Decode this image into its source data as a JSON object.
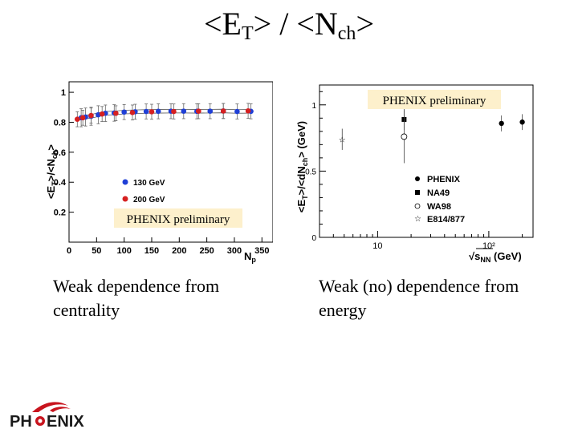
{
  "slide": {
    "title_main_1": "<E",
    "title_sub_1": "T",
    "title_main_2": "> / <N",
    "title_sub_2": "ch",
    "title_main_3": ">",
    "caption_left": "Weak dependence from centrality",
    "caption_right": "Weak (no) dependence from energy",
    "logo_text_left": "PH",
    "logo_text_right": "ENIX"
  },
  "chart_data": [
    {
      "type": "scatter",
      "title": "",
      "annotation": "PHENIX preliminary",
      "xlabel": "N",
      "xlabel_sub": "p",
      "ylabel": "<E",
      "ylabel_sub": "T",
      "ylabel_mid": ">/<N",
      "ylabel_sub2": "ch",
      "ylabel_end": ">",
      "xlim": [
        0,
        370
      ],
      "ylim": [
        0,
        1.07
      ],
      "xticks": [
        0,
        50,
        100,
        150,
        200,
        250,
        300,
        350
      ],
      "yticks": [
        0.2,
        0.4,
        0.6,
        0.8,
        1
      ],
      "ytick_labels": [
        "0.2",
        "0.4",
        "0.6",
        "0.8",
        "1"
      ],
      "legend_position": "bottom-left",
      "series": [
        {
          "name": "130 GeV",
          "color": "#1f3fd6",
          "x": [
            22,
            30,
            40,
            53,
            66,
            82,
            100,
            120,
            140,
            162,
            185,
            208,
            232,
            256,
            280,
            305,
            330
          ],
          "y": [
            0.83,
            0.835,
            0.84,
            0.85,
            0.86,
            0.862,
            0.868,
            0.87,
            0.872,
            0.873,
            0.874,
            0.874,
            0.873,
            0.874,
            0.875,
            0.872,
            0.873
          ],
          "err": [
            0.06,
            0.06,
            0.06,
            0.06,
            0.055,
            0.055,
            0.05,
            0.05,
            0.05,
            0.05,
            0.05,
            0.05,
            0.05,
            0.05,
            0.05,
            0.05,
            0.05
          ]
        },
        {
          "name": "200 GeV",
          "color": "#d62020",
          "x": [
            15,
            25,
            40,
            60,
            85,
            115,
            150,
            190,
            235,
            280,
            325
          ],
          "y": [
            0.82,
            0.83,
            0.845,
            0.855,
            0.86,
            0.865,
            0.87,
            0.872,
            0.874,
            0.875,
            0.876
          ],
          "err": [
            0.05,
            0.05,
            0.05,
            0.05,
            0.05,
            0.05,
            0.05,
            0.05,
            0.05,
            0.05,
            0.05
          ]
        }
      ]
    },
    {
      "type": "scatter",
      "title": "",
      "annotation": "PHENIX preliminary",
      "xlabel": "√s",
      "xlabel_sub": "NN",
      "xlabel_end": " (GeV)",
      "ylabel": "<E",
      "ylabel_sub": "T",
      "ylabel_mid": ">/<dN",
      "ylabel_sub2": "ch",
      "ylabel_end": "> (GeV)",
      "xscale": "log",
      "xlim": [
        3,
        250
      ],
      "ylim": [
        0,
        1.15
      ],
      "xtick_labels": [
        "10",
        "10²"
      ],
      "xticks": [
        10,
        100
      ],
      "yticks": [
        0,
        0.5,
        1
      ],
      "ytick_labels": [
        "0",
        "0.5",
        "1"
      ],
      "legend_position": "bottom-right",
      "series": [
        {
          "name": "PHENIX",
          "marker": "filled-circle",
          "x": [
            130,
            200
          ],
          "y": [
            0.86,
            0.87
          ],
          "err": [
            0.06,
            0.06
          ]
        },
        {
          "name": "NA49",
          "marker": "filled-square",
          "x": [
            17.3
          ],
          "y": [
            0.89
          ],
          "err": [
            0.08
          ]
        },
        {
          "name": "WA98",
          "marker": "open-circle",
          "x": [
            17.3
          ],
          "y": [
            0.76
          ],
          "err": [
            0.2
          ]
        },
        {
          "name": "E814/877",
          "marker": "open-star",
          "x": [
            4.8
          ],
          "y": [
            0.74
          ],
          "err": [
            0.08
          ]
        }
      ]
    }
  ]
}
